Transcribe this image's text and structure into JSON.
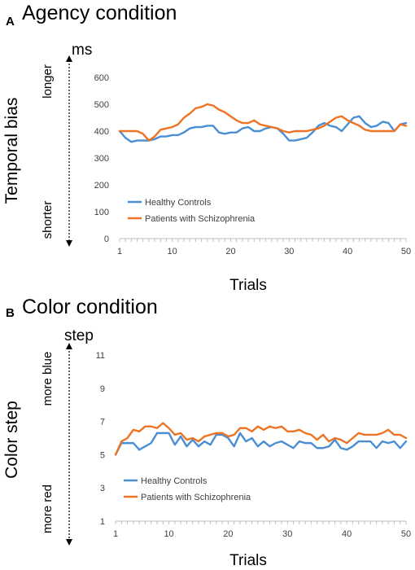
{
  "chart_data": [
    {
      "type": "line",
      "panel_letter": "A",
      "title": "Agency condition",
      "unit": "ms",
      "ylabel": "Temporal bias",
      "direction_top": "longer",
      "direction_bottom": "shorter",
      "xlabel": "Trials",
      "ylim": [
        0,
        600
      ],
      "xlim": [
        1,
        50
      ],
      "yticks": [
        0,
        100,
        200,
        300,
        400,
        500,
        600
      ],
      "xticks": [
        1,
        10,
        20,
        30,
        40,
        50
      ],
      "legend_position": "bottom-left",
      "series": [
        {
          "name": "Healthy Controls",
          "color": "#4a8fd4",
          "values": [
            400,
            375,
            360,
            365,
            365,
            365,
            370,
            380,
            380,
            385,
            385,
            395,
            410,
            415,
            415,
            420,
            420,
            395,
            390,
            395,
            395,
            410,
            415,
            400,
            400,
            410,
            415,
            410,
            390,
            365,
            365,
            370,
            375,
            395,
            420,
            430,
            420,
            415,
            400,
            425,
            450,
            455,
            430,
            415,
            420,
            435,
            430,
            400,
            425,
            430
          ]
        },
        {
          "name": "Patients with Schizophrenia",
          "color": "#ed7424",
          "values": [
            400,
            400,
            400,
            400,
            390,
            365,
            380,
            405,
            410,
            415,
            425,
            450,
            465,
            485,
            490,
            500,
            495,
            480,
            470,
            455,
            440,
            430,
            430,
            440,
            425,
            420,
            415,
            410,
            400,
            395,
            400,
            400,
            400,
            405,
            410,
            420,
            435,
            450,
            455,
            440,
            430,
            420,
            405,
            400,
            400,
            400,
            400,
            400,
            425,
            420
          ]
        }
      ]
    },
    {
      "type": "line",
      "panel_letter": "B",
      "title": "Color condition",
      "unit": "step",
      "ylabel": "Color step",
      "direction_top": "more blue",
      "direction_bottom": "more red",
      "xlabel": "Trials",
      "ylim": [
        1,
        11
      ],
      "xlim": [
        1,
        50
      ],
      "yticks": [
        1,
        3,
        5,
        7,
        9,
        11
      ],
      "xticks": [
        1,
        10,
        20,
        30,
        40,
        50
      ],
      "legend_position": "bottom-left",
      "series": [
        {
          "name": "Healthy Controls",
          "color": "#4a8fd4",
          "values": [
            5.0,
            5.7,
            5.7,
            5.7,
            5.3,
            5.5,
            5.7,
            6.3,
            6.3,
            6.3,
            5.6,
            6.1,
            5.5,
            5.9,
            5.5,
            5.8,
            5.6,
            6.2,
            6.2,
            6.0,
            5.5,
            6.3,
            5.8,
            6.0,
            5.5,
            5.8,
            5.5,
            5.7,
            5.8,
            5.6,
            5.4,
            5.8,
            5.7,
            5.7,
            5.4,
            5.4,
            5.5,
            5.9,
            5.4,
            5.3,
            5.5,
            5.8,
            5.8,
            5.8,
            5.4,
            5.8,
            5.7,
            5.8,
            5.4,
            5.8
          ]
        },
        {
          "name": "Patients with Schizophrenia",
          "color": "#ed7424",
          "values": [
            5.0,
            5.8,
            6.0,
            6.5,
            6.4,
            6.7,
            6.7,
            6.6,
            6.9,
            6.6,
            6.2,
            6.3,
            5.9,
            6.0,
            5.8,
            6.1,
            6.2,
            6.3,
            6.3,
            6.1,
            6.2,
            6.6,
            6.6,
            6.4,
            6.7,
            6.5,
            6.7,
            6.6,
            6.7,
            6.4,
            6.4,
            6.5,
            6.3,
            6.2,
            5.9,
            6.2,
            5.8,
            6.0,
            5.9,
            5.7,
            6.0,
            6.3,
            6.2,
            6.2,
            6.2,
            6.3,
            6.5,
            6.2,
            6.2,
            6.0
          ]
        }
      ]
    }
  ]
}
